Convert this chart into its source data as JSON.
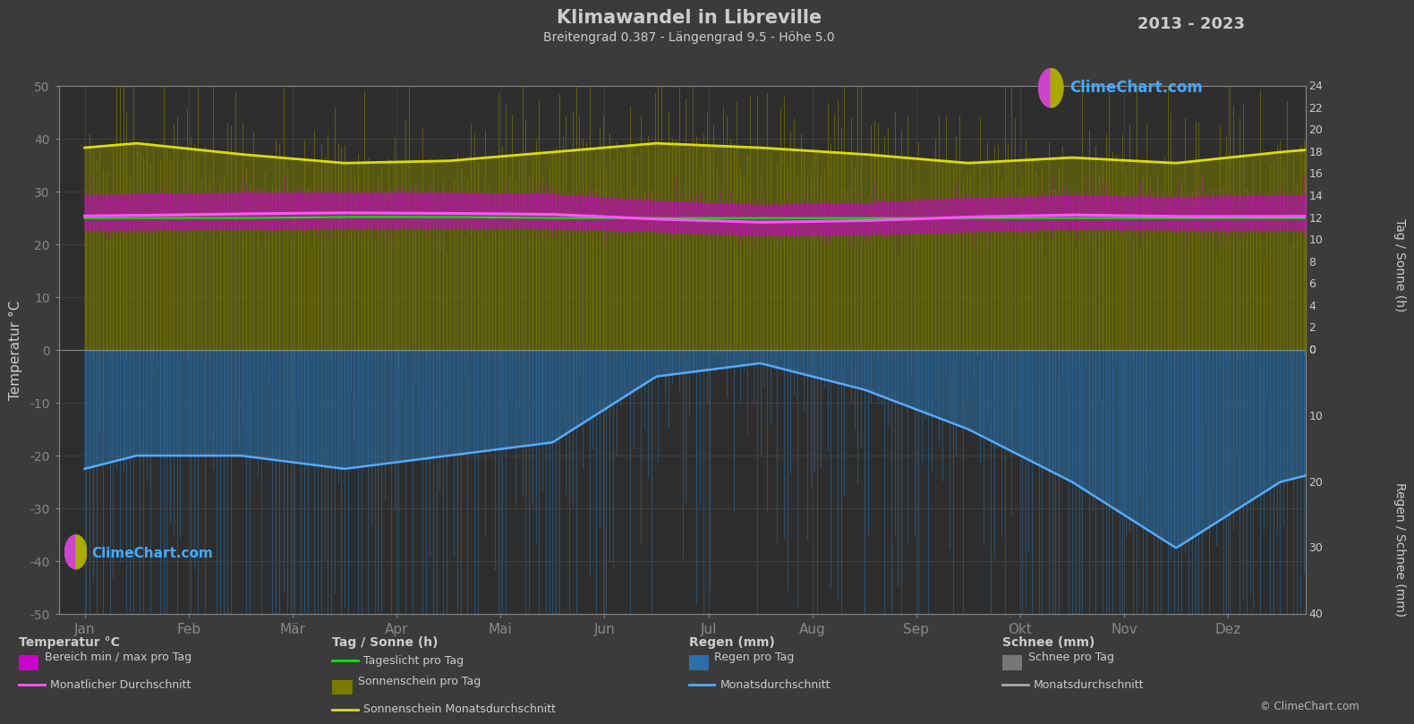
{
  "title": "Klimawandel in Libreville",
  "subtitle": "Breitengrad 0.387 - Längengrad 9.5 - Höhe 5.0",
  "year_range": "2013 - 2023",
  "background_color": "#3b3b3b",
  "plot_bg_color": "#2e2e2e",
  "months": [
    "Jan",
    "Feb",
    "Mär",
    "Apr",
    "Mai",
    "Jun",
    "Jul",
    "Aug",
    "Sep",
    "Okt",
    "Nov",
    "Dez"
  ],
  "temp_ylim": [
    -50,
    50
  ],
  "temp_avg": [
    25.5,
    25.8,
    26.0,
    25.9,
    25.7,
    24.8,
    24.2,
    24.5,
    25.2,
    25.6,
    25.3,
    25.3
  ],
  "temp_max_avg": [
    29.5,
    29.8,
    29.8,
    29.8,
    29.5,
    28.2,
    27.5,
    27.8,
    28.8,
    29.2,
    29.0,
    29.2
  ],
  "temp_min_avg": [
    22.8,
    23.0,
    23.2,
    23.2,
    23.2,
    22.5,
    21.8,
    22.0,
    22.5,
    23.0,
    22.8,
    22.8
  ],
  "daylight_hours": [
    12.0,
    12.0,
    12.1,
    12.1,
    12.0,
    12.0,
    12.0,
    12.0,
    12.0,
    12.0,
    12.0,
    12.0
  ],
  "sunshine_avg": [
    18.8,
    17.8,
    17.0,
    17.2,
    18.0,
    18.8,
    18.4,
    17.8,
    17.0,
    17.5,
    17.0,
    18.0
  ],
  "rain_avg_mm": [
    16,
    16,
    18,
    16,
    14,
    4,
    2,
    6,
    12,
    20,
    30,
    20
  ],
  "rain_daily_typical": [
    60,
    50,
    60,
    45,
    40,
    20,
    15,
    30,
    35,
    55,
    100,
    70
  ],
  "snow_daily_typical": [
    1,
    1,
    1,
    1,
    0.5,
    0.3,
    0.3,
    0.3,
    0.5,
    1,
    1.5,
    1
  ],
  "colors": {
    "temp_band_fill": "#cc00cc",
    "temp_avg_line": "#ff55ff",
    "daylight_line": "#00ee00",
    "sunshine_fill": "#7a7a00",
    "sunshine_line": "#dddd00",
    "rain_fill": "#2a6fa8",
    "rain_line": "#55aaff",
    "snow_fill": "#777777",
    "snow_line": "#aaaaaa",
    "grid": "#4a4a4a",
    "text": "#cccccc",
    "spine": "#888888",
    "climechart_blue": "#44aaff",
    "logo_magenta": "#cc44cc",
    "logo_yellow": "#aaaa00"
  },
  "left_ylabel": "Temperatur °C",
  "right_top_label": "Tag / Sonne (h)",
  "right_bottom_label": "Regen / Schnee (mm)",
  "legend": {
    "temp_section": "Temperatur °C",
    "temp_band": "Bereich min / max pro Tag",
    "temp_avg": "Monatlicher Durchschnitt",
    "sun_section": "Tag / Sonne (h)",
    "daylight": "Tageslicht pro Tag",
    "sunshine": "Sonnenschein pro Tag",
    "sunshine_avg": "Sonnenschein Monatsdurchschnitt",
    "rain_section": "Regen (mm)",
    "rain_daily": "Regen pro Tag",
    "rain_avg": "Monatsdurchschnitt",
    "snow_section": "Schnee (mm)",
    "snow_daily": "Schnee pro Tag",
    "snow_avg": "Monatsdurchschnitt"
  }
}
